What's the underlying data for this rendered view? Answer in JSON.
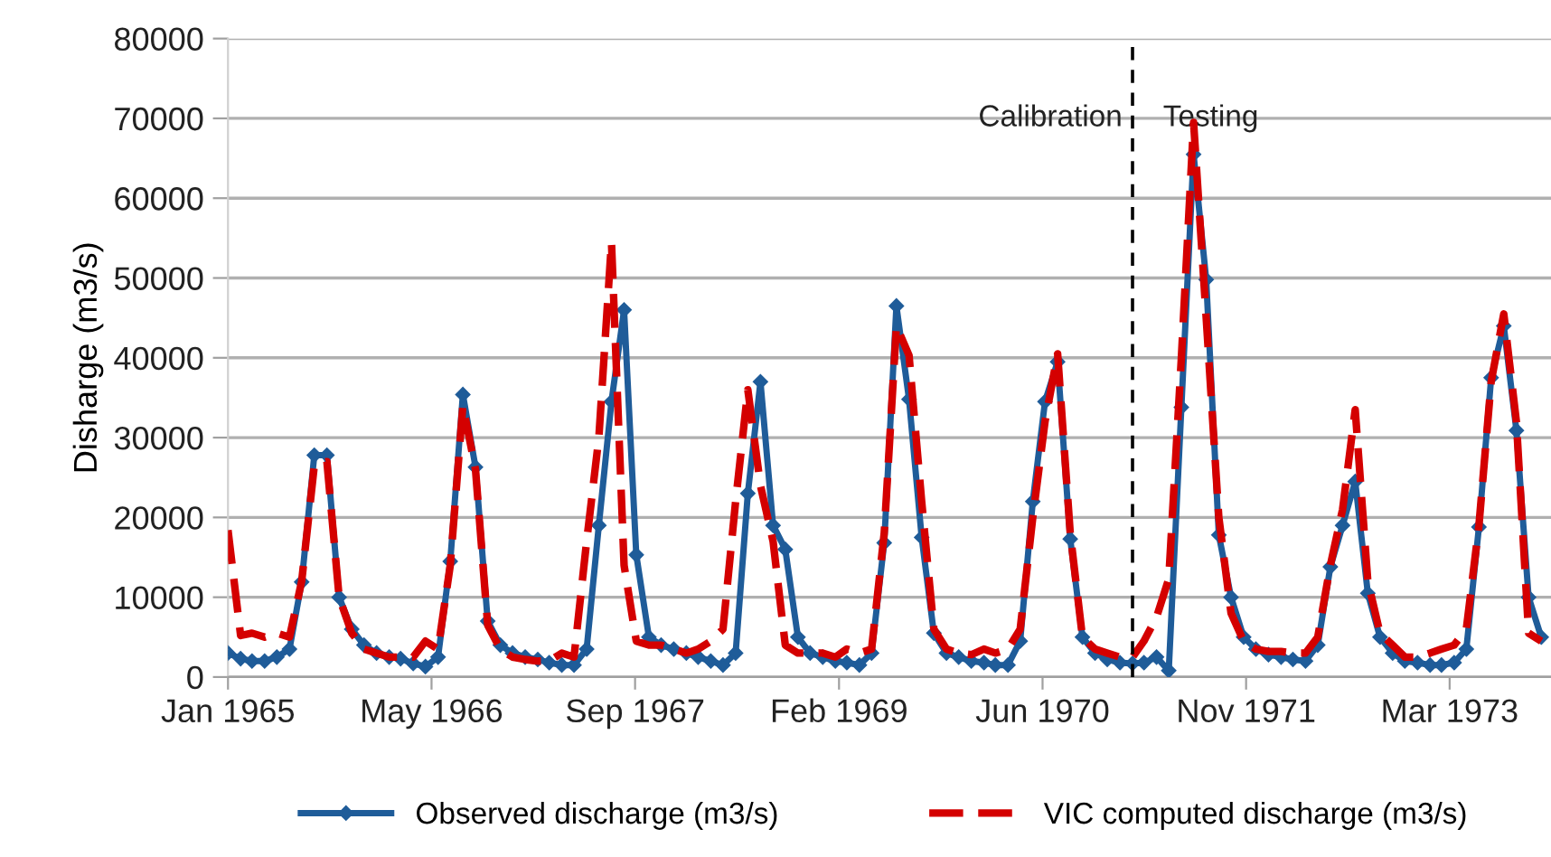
{
  "chart_data": {
    "type": "line",
    "ylabel": "Disharge (m3/s)",
    "x": [
      "1965-01",
      "1965-02",
      "1965-03",
      "1965-04",
      "1965-05",
      "1965-06",
      "1965-07",
      "1965-08",
      "1965-09",
      "1965-10",
      "1965-11",
      "1965-12",
      "1966-01",
      "1966-02",
      "1966-03",
      "1966-04",
      "1966-05",
      "1966-06",
      "1966-07",
      "1966-08",
      "1966-09",
      "1966-10",
      "1966-11",
      "1966-12",
      "1967-01",
      "1967-02",
      "1967-03",
      "1967-04",
      "1967-05",
      "1967-06",
      "1967-07",
      "1967-08",
      "1967-09",
      "1967-10",
      "1967-11",
      "1967-12",
      "1968-01",
      "1968-02",
      "1968-03",
      "1968-04",
      "1968-05",
      "1968-06",
      "1968-07",
      "1968-08",
      "1968-09",
      "1968-10",
      "1968-11",
      "1968-12",
      "1969-01",
      "1969-02",
      "1969-03",
      "1969-04",
      "1969-05",
      "1969-06",
      "1969-07",
      "1969-08",
      "1969-09",
      "1969-10",
      "1969-11",
      "1969-12",
      "1970-01",
      "1970-02",
      "1970-03",
      "1970-04",
      "1970-05",
      "1970-06",
      "1970-07",
      "1970-08",
      "1970-09",
      "1970-10",
      "1970-11",
      "1970-12",
      "1971-01",
      "1971-02",
      "1971-03",
      "1971-04",
      "1971-05",
      "1971-06",
      "1971-07",
      "1971-08",
      "1971-09",
      "1971-10",
      "1971-11",
      "1971-12",
      "1972-01",
      "1972-02",
      "1972-03",
      "1972-04",
      "1972-05",
      "1972-06",
      "1972-07",
      "1972-08",
      "1972-09",
      "1972-10",
      "1972-11",
      "1972-12",
      "1973-01",
      "1973-02",
      "1973-03",
      "1973-04",
      "1973-05",
      "1973-06",
      "1973-07",
      "1973-08",
      "1973-09",
      "1973-10",
      "1973-11"
    ],
    "xlim": [
      "1965-01-01",
      "1973-11-25"
    ],
    "xticks": [
      {
        "value": "1965-01-01",
        "label": "Jan 1965"
      },
      {
        "value": "1966-05-16",
        "label": "May 1966"
      },
      {
        "value": "1967-09-28",
        "label": "Sep 1967"
      },
      {
        "value": "1969-02-10",
        "label": "Feb 1969"
      },
      {
        "value": "1970-06-25",
        "label": "Jun 1970"
      },
      {
        "value": "1971-11-07",
        "label": "Nov 1971"
      },
      {
        "value": "1973-03-21",
        "label": "Mar 1973"
      }
    ],
    "ylim": [
      0,
      80000
    ],
    "yticks": [
      0,
      10000,
      20000,
      30000,
      40000,
      50000,
      60000,
      70000,
      80000
    ],
    "grid": "y",
    "legend": "bottom",
    "ref_lines": [
      {
        "axis": "x",
        "value": "1971-02-01",
        "color": "#000000",
        "line_style": "dashed"
      }
    ],
    "annotations": [
      "Calibration",
      "Testing"
    ],
    "series": [
      {
        "name": "Observed discharge (m3/s)",
        "color": "#1f5c99",
        "marker": "diamond",
        "line_style": "solid",
        "values": [
          3000,
          2300,
          2000,
          2000,
          2500,
          3500,
          11900,
          27800,
          27800,
          10000,
          6000,
          4000,
          3000,
          2500,
          2300,
          1700,
          1300,
          2500,
          14500,
          35400,
          26300,
          7000,
          4000,
          3000,
          2500,
          2200,
          1800,
          1500,
          1500,
          3500,
          19000,
          34500,
          46000,
          15300,
          5000,
          4000,
          3500,
          3000,
          2500,
          2000,
          1500,
          3000,
          23000,
          37000,
          19000,
          16000,
          5000,
          3000,
          2500,
          2000,
          1800,
          1500,
          3000,
          16800,
          46500,
          34800,
          17500,
          5500,
          3000,
          2500,
          2000,
          1800,
          1500,
          1500,
          4500,
          22000,
          34500,
          39500,
          17300,
          5000,
          3000,
          2200,
          1800,
          1700,
          1800,
          2500,
          800,
          33800,
          65500,
          49800,
          17800,
          10000,
          5000,
          3500,
          2800,
          2500,
          2200,
          2000,
          4000,
          13800,
          19000,
          24500,
          10500,
          5000,
          3000,
          2000,
          1800,
          1500,
          1500,
          1800,
          3500,
          18800,
          37500,
          44000,
          30900,
          10000,
          5000
        ]
      },
      {
        "name": "VIC computed discharge (m3/s)",
        "color": "#d40000",
        "marker": "none",
        "line_style": "dashed",
        "values": [
          18400,
          5200,
          5500,
          5000,
          5500,
          5000,
          12000,
          26500,
          27000,
          10000,
          5500,
          3500,
          3000,
          2500,
          2500,
          2500,
          4500,
          3500,
          14000,
          34000,
          26000,
          6500,
          3500,
          2500,
          2200,
          2000,
          2000,
          3000,
          2500,
          17000,
          30000,
          54500,
          14000,
          4500,
          4000,
          4000,
          3500,
          3000,
          3500,
          4500,
          6000,
          22000,
          36000,
          24000,
          17000,
          4000,
          3000,
          3000,
          3000,
          2500,
          3500,
          3000,
          3500,
          18000,
          44000,
          40300,
          22000,
          6000,
          3500,
          3000,
          2800,
          3500,
          3000,
          3500,
          6000,
          20000,
          32000,
          40500,
          18000,
          5000,
          3500,
          3000,
          2500,
          2500,
          4500,
          7500,
          12300,
          40000,
          69500,
          45000,
          20000,
          8000,
          4500,
          3500,
          3200,
          3200,
          3000,
          3000,
          5000,
          14000,
          21000,
          33500,
          12000,
          5500,
          4000,
          2500,
          2500,
          3000,
          3500,
          4000,
          6000,
          19000,
          37000,
          45500,
          32000,
          5500,
          4500
        ]
      }
    ]
  }
}
